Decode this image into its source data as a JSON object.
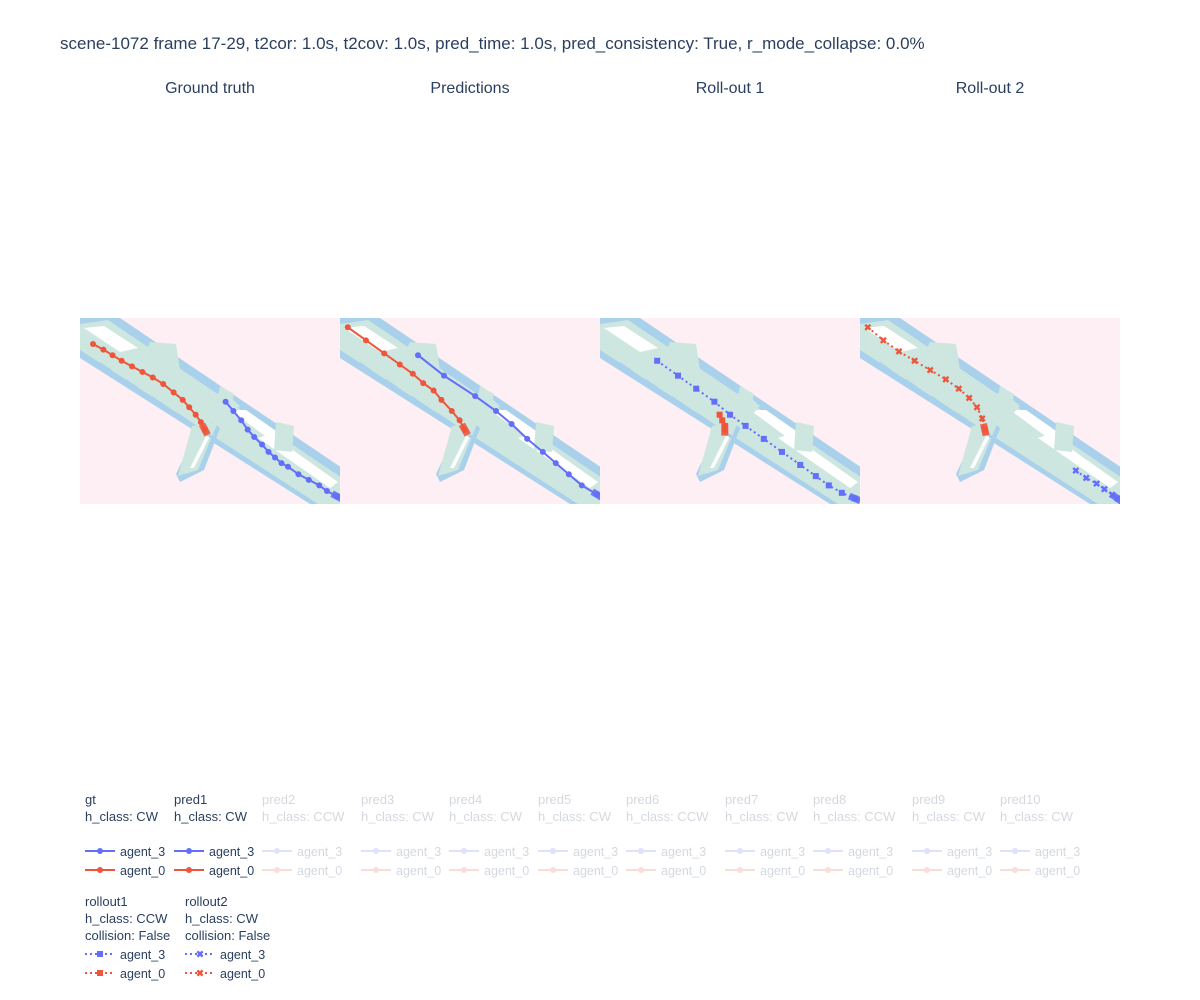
{
  "title": "scene-1072 frame 17-29, t2cor: 1.0s, t2cov: 1.0s, pred_time: 1.0s, pred_consistency: True, r_mode_collapse: 0.0%",
  "colors": {
    "background": "#fdeff3",
    "road": "#cde6df",
    "walkway": "#a9d1ec",
    "agent_3": "#636efa",
    "agent_0": "#ef553b"
  },
  "chart_data": [
    {
      "type": "line",
      "title": "Ground truth",
      "series": [
        {
          "name": "agent_3",
          "marker": "circle",
          "dash": "solid",
          "x": [
            0.56,
            0.59,
            0.62,
            0.645,
            0.67,
            0.7,
            0.725,
            0.75,
            0.775,
            0.8,
            0.84,
            0.88,
            0.92,
            0.95,
            0.99
          ],
          "y": [
            0.45,
            0.5,
            0.55,
            0.6,
            0.64,
            0.68,
            0.72,
            0.75,
            0.78,
            0.8,
            0.84,
            0.87,
            0.9,
            0.93,
            0.96
          ]
        },
        {
          "name": "agent_0",
          "marker": "circle",
          "dash": "solid",
          "x": [
            0.05,
            0.09,
            0.125,
            0.16,
            0.2,
            0.24,
            0.28,
            0.32,
            0.36,
            0.395,
            0.42,
            0.445,
            0.465,
            0.48
          ],
          "y": [
            0.14,
            0.17,
            0.2,
            0.23,
            0.26,
            0.29,
            0.32,
            0.355,
            0.4,
            0.44,
            0.48,
            0.52,
            0.56,
            0.6
          ]
        }
      ]
    },
    {
      "type": "line",
      "title": "Predictions",
      "series": [
        {
          "name": "agent_3",
          "marker": "circle",
          "dash": "solid",
          "x": [
            0.3,
            0.4,
            0.52,
            0.6,
            0.66,
            0.72,
            0.78,
            0.83,
            0.88,
            0.93,
            0.99
          ],
          "y": [
            0.2,
            0.31,
            0.42,
            0.5,
            0.57,
            0.65,
            0.72,
            0.78,
            0.84,
            0.9,
            0.95
          ]
        },
        {
          "name": "agent_0",
          "marker": "circle",
          "dash": "solid",
          "x": [
            0.03,
            0.1,
            0.17,
            0.23,
            0.28,
            0.32,
            0.36,
            0.39,
            0.43,
            0.46,
            0.48
          ],
          "y": [
            0.05,
            0.12,
            0.19,
            0.25,
            0.3,
            0.35,
            0.39,
            0.44,
            0.5,
            0.55,
            0.6
          ]
        }
      ]
    },
    {
      "type": "line",
      "title": "Roll-out 1",
      "series": [
        {
          "name": "agent_3",
          "marker": "square",
          "dash": "dot",
          "x": [
            0.22,
            0.3,
            0.37,
            0.44,
            0.5,
            0.56,
            0.63,
            0.7,
            0.77,
            0.83,
            0.88,
            0.93,
            0.98
          ],
          "y": [
            0.23,
            0.31,
            0.38,
            0.45,
            0.52,
            0.58,
            0.65,
            0.72,
            0.79,
            0.85,
            0.9,
            0.94,
            0.97
          ]
        },
        {
          "name": "agent_0",
          "marker": "square",
          "dash": "dot",
          "x": [
            0.46,
            0.47,
            0.48,
            0.48
          ],
          "y": [
            0.52,
            0.55,
            0.58,
            0.6
          ]
        }
      ]
    },
    {
      "type": "line",
      "title": "Roll-out 2",
      "series": [
        {
          "name": "agent_3",
          "marker": "x",
          "dash": "dot",
          "x": [
            0.83,
            0.87,
            0.91,
            0.94,
            0.97,
            0.99
          ],
          "y": [
            0.82,
            0.86,
            0.89,
            0.92,
            0.95,
            0.97
          ]
        },
        {
          "name": "agent_0",
          "marker": "x",
          "dash": "dot",
          "x": [
            0.03,
            0.09,
            0.15,
            0.21,
            0.27,
            0.33,
            0.38,
            0.42,
            0.45,
            0.47,
            0.48
          ],
          "y": [
            0.05,
            0.12,
            0.18,
            0.23,
            0.28,
            0.33,
            0.38,
            0.43,
            0.48,
            0.54,
            0.6
          ]
        }
      ]
    }
  ],
  "legend": {
    "row1": [
      {
        "name": "gt",
        "h_class": "h_class: CW",
        "faded": false,
        "marker": "circle",
        "dash": "solid"
      },
      {
        "name": "pred1",
        "h_class": "h_class: CW",
        "faded": false,
        "marker": "circle",
        "dash": "solid"
      },
      {
        "name": "pred2",
        "h_class": "h_class: CCW",
        "faded": true,
        "marker": "circle",
        "dash": "solid"
      },
      {
        "name": "pred3",
        "h_class": "h_class: CW",
        "faded": true,
        "marker": "circle",
        "dash": "solid"
      },
      {
        "name": "pred4",
        "h_class": "h_class: CW",
        "faded": true,
        "marker": "circle",
        "dash": "solid"
      },
      {
        "name": "pred5",
        "h_class": "h_class: CW",
        "faded": true,
        "marker": "circle",
        "dash": "solid"
      },
      {
        "name": "pred6",
        "h_class": "h_class: CCW",
        "faded": true,
        "marker": "circle",
        "dash": "solid"
      },
      {
        "name": "pred7",
        "h_class": "h_class: CW",
        "faded": true,
        "marker": "circle",
        "dash": "solid"
      },
      {
        "name": "pred8",
        "h_class": "h_class: CCW",
        "faded": true,
        "marker": "circle",
        "dash": "solid"
      },
      {
        "name": "pred9",
        "h_class": "h_class: CW",
        "faded": true,
        "marker": "circle",
        "dash": "solid"
      },
      {
        "name": "pred10",
        "h_class": "h_class: CW",
        "faded": true,
        "marker": "circle",
        "dash": "solid"
      }
    ],
    "row2": [
      {
        "name": "rollout1",
        "h_class": "h_class: CCW",
        "collision": "collision: False",
        "faded": false,
        "marker": "square",
        "dash": "dot"
      },
      {
        "name": "rollout2",
        "h_class": "h_class: CW",
        "collision": "collision: False",
        "faded": false,
        "marker": "x",
        "dash": "dot"
      }
    ],
    "agents": [
      "agent_3",
      "agent_0"
    ]
  }
}
